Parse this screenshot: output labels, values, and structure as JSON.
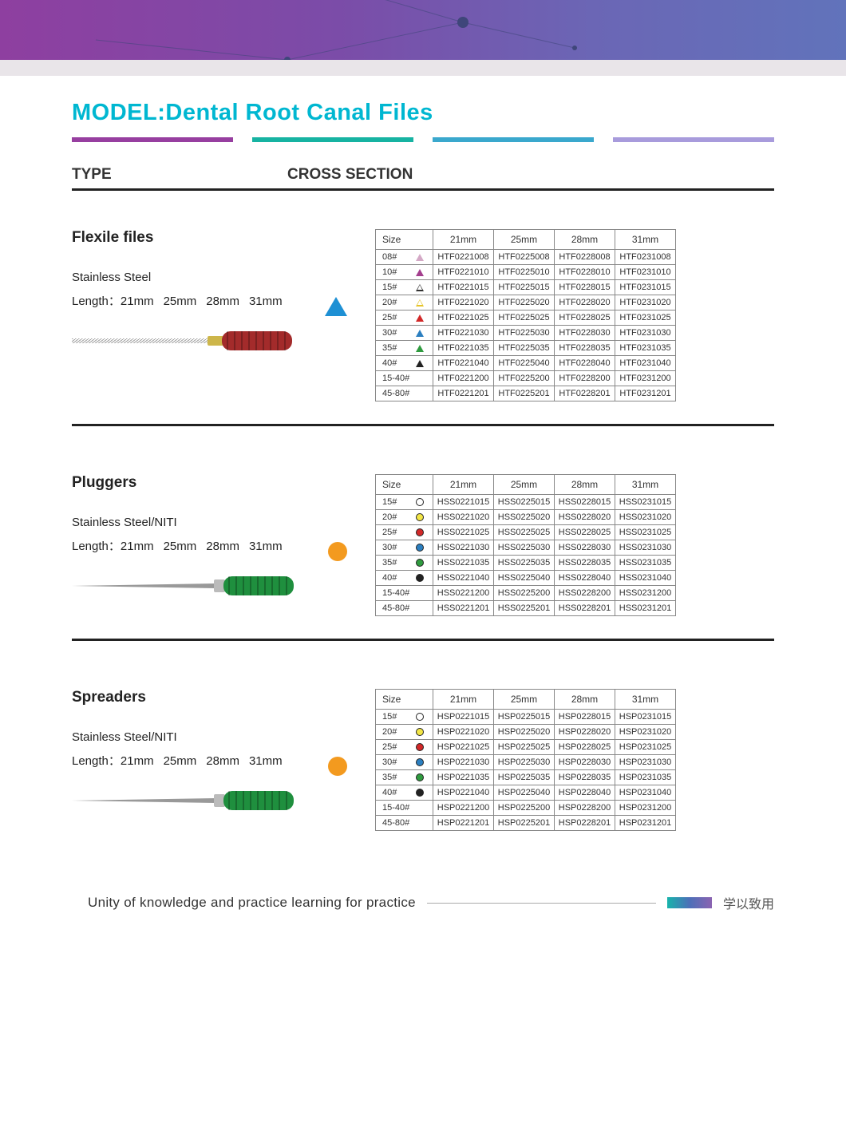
{
  "banner": {
    "gradient_colors": [
      "#8e3fa0",
      "#7b4ca8",
      "#6b66b5",
      "#6173bb"
    ],
    "line_color": "#4a4f8f",
    "node_fill": "#3f467a"
  },
  "title": "MODEL:Dental Root Canal Files",
  "title_color": "#00b7d1",
  "rule_bars": [
    "#973fa0",
    "#17b3a2",
    "#3aa8cd",
    "#a89bdc"
  ],
  "headings": {
    "type": "TYPE",
    "cross_section": "CROSS SECTION"
  },
  "sections": [
    {
      "name": "Flexile files",
      "material": "Stainless Steel",
      "length_label": "Length：",
      "lengths": [
        "21mm",
        "25mm",
        "28mm",
        "31mm"
      ],
      "cross_section": {
        "shape": "triangle",
        "color": "#1e90d4"
      },
      "tool": {
        "handle_color": "#a32b2b",
        "tip": "file",
        "ferrule": "#cdb64a"
      },
      "table": {
        "columns": [
          "Size",
          "21mm",
          "25mm",
          "28mm",
          "31mm"
        ],
        "icon_type": "triangle",
        "rows": [
          {
            "size": "08#",
            "icon_color": "#d4a9c6",
            "fill": "solid",
            "cells": [
              "HTF0221008",
              "HTF0225008",
              "HTF0228008",
              "HTF0231008"
            ]
          },
          {
            "size": "10#",
            "icon_color": "#a43f8e",
            "fill": "solid",
            "cells": [
              "HTF0221010",
              "HTF0225010",
              "HTF0228010",
              "HTF0231010"
            ]
          },
          {
            "size": "15#",
            "icon_color": "#333",
            "fill": "outline",
            "cells": [
              "HTF0221015",
              "HTF0225015",
              "HTF0228015",
              "HTF0231015"
            ]
          },
          {
            "size": "20#",
            "icon_color": "#e6c42a",
            "fill": "outline",
            "cells": [
              "HTF0221020",
              "HTF0225020",
              "HTF0228020",
              "HTF0231020"
            ]
          },
          {
            "size": "25#",
            "icon_color": "#d22828",
            "fill": "solid",
            "cells": [
              "HTF0221025",
              "HTF0225025",
              "HTF0228025",
              "HTF0231025"
            ]
          },
          {
            "size": "30#",
            "icon_color": "#2b7fc0",
            "fill": "solid",
            "cells": [
              "HTF0221030",
              "HTF0225030",
              "HTF0228030",
              "HTF0231030"
            ]
          },
          {
            "size": "35#",
            "icon_color": "#2f9b3f",
            "fill": "solid",
            "cells": [
              "HTF0221035",
              "HTF0225035",
              "HTF0228035",
              "HTF0231035"
            ]
          },
          {
            "size": "40#",
            "icon_color": "#222",
            "fill": "solid",
            "cells": [
              "HTF0221040",
              "HTF0225040",
              "HTF0228040",
              "HTF0231040"
            ]
          },
          {
            "size": "15-40#",
            "icon_color": null,
            "fill": null,
            "cells": [
              "HTF0221200",
              "HTF0225200",
              "HTF0228200",
              "HTF0231200"
            ]
          },
          {
            "size": "45-80#",
            "icon_color": null,
            "fill": null,
            "cells": [
              "HTF0221201",
              "HTF0225201",
              "HTF0228201",
              "HTF0231201"
            ]
          }
        ]
      }
    },
    {
      "name": "Pluggers",
      "material": "Stainless Steel/NITI",
      "length_label": "Length：",
      "lengths": [
        "21mm",
        "25mm",
        "28mm",
        "31mm"
      ],
      "cross_section": {
        "shape": "circle",
        "color": "#f39a1f"
      },
      "tool": {
        "handle_color": "#1f8f3e",
        "tip": "needle",
        "ferrule": null
      },
      "table": {
        "columns": [
          "Size",
          "21mm",
          "25mm",
          "28mm",
          "31mm"
        ],
        "icon_type": "circle",
        "rows": [
          {
            "size": "15#",
            "icon_color": "#ffffff",
            "fill": "outline",
            "cells": [
              "HSS0221015",
              "HSS0225015",
              "HSS0228015",
              "HSS0231015"
            ]
          },
          {
            "size": "20#",
            "icon_color": "#f3e646",
            "fill": "solid",
            "cells": [
              "HSS0221020",
              "HSS0225020",
              "HSS0228020",
              "HSS0231020"
            ]
          },
          {
            "size": "25#",
            "icon_color": "#d22828",
            "fill": "solid",
            "cells": [
              "HSS0221025",
              "HSS0225025",
              "HSS0228025",
              "HSS0231025"
            ]
          },
          {
            "size": "30#",
            "icon_color": "#2b7fc0",
            "fill": "solid",
            "cells": [
              "HSS0221030",
              "HSS0225030",
              "HSS0228030",
              "HSS0231030"
            ]
          },
          {
            "size": "35#",
            "icon_color": "#2f9b3f",
            "fill": "solid",
            "cells": [
              "HSS0221035",
              "HSS0225035",
              "HSS0228035",
              "HSS0231035"
            ]
          },
          {
            "size": "40#",
            "icon_color": "#222",
            "fill": "solid",
            "cells": [
              "HSS0221040",
              "HSS0225040",
              "HSS0228040",
              "HSS0231040"
            ]
          },
          {
            "size": "15-40#",
            "icon_color": null,
            "fill": null,
            "cells": [
              "HSS0221200",
              "HSS0225200",
              "HSS0228200",
              "HSS0231200"
            ]
          },
          {
            "size": "45-80#",
            "icon_color": null,
            "fill": null,
            "cells": [
              "HSS0221201",
              "HSS0225201",
              "HSS0228201",
              "HSS0231201"
            ]
          }
        ]
      }
    },
    {
      "name": "Spreaders",
      "material": "Stainless Steel/NITI",
      "length_label": "Length：",
      "lengths": [
        "21mm",
        "25mm",
        "28mm",
        "31mm"
      ],
      "cross_section": {
        "shape": "circle",
        "color": "#f39a1f"
      },
      "tool": {
        "handle_color": "#1f8f3e",
        "tip": "needle",
        "ferrule": null
      },
      "table": {
        "columns": [
          "Size",
          "21mm",
          "25mm",
          "28mm",
          "31mm"
        ],
        "icon_type": "circle",
        "rows": [
          {
            "size": "15#",
            "icon_color": "#ffffff",
            "fill": "outline",
            "cells": [
              "HSP0221015",
              "HSP0225015",
              "HSP0228015",
              "HSP0231015"
            ]
          },
          {
            "size": "20#",
            "icon_color": "#f3e646",
            "fill": "solid",
            "cells": [
              "HSP0221020",
              "HSP0225020",
              "HSP0228020",
              "HSP0231020"
            ]
          },
          {
            "size": "25#",
            "icon_color": "#d22828",
            "fill": "solid",
            "cells": [
              "HSP0221025",
              "HSP0225025",
              "HSP0228025",
              "HSP0231025"
            ]
          },
          {
            "size": "30#",
            "icon_color": "#2b7fc0",
            "fill": "solid",
            "cells": [
              "HSP0221030",
              "HSP0225030",
              "HSP0228030",
              "HSP0231030"
            ]
          },
          {
            "size": "35#",
            "icon_color": "#2f9b3f",
            "fill": "solid",
            "cells": [
              "HSP0221035",
              "HSP0225035",
              "HSP0228035",
              "HSP0231035"
            ]
          },
          {
            "size": "40#",
            "icon_color": "#222",
            "fill": "solid",
            "cells": [
              "HSP0221040",
              "HSP0225040",
              "HSP0228040",
              "HSP0231040"
            ]
          },
          {
            "size": "15-40#",
            "icon_color": null,
            "fill": null,
            "cells": [
              "HSP0221200",
              "HSP0225200",
              "HSP0228200",
              "HSP0231200"
            ]
          },
          {
            "size": "45-80#",
            "icon_color": null,
            "fill": null,
            "cells": [
              "HSP0221201",
              "HSP0225201",
              "HSP0228201",
              "HSP0231201"
            ]
          }
        ]
      }
    }
  ],
  "footer": {
    "text_en": "Unity of knowledge and practice  learning for practice",
    "text_cn": "学以致用",
    "chip_colors": [
      "#17b3ab",
      "#4d6fb8",
      "#8b63b1"
    ]
  }
}
